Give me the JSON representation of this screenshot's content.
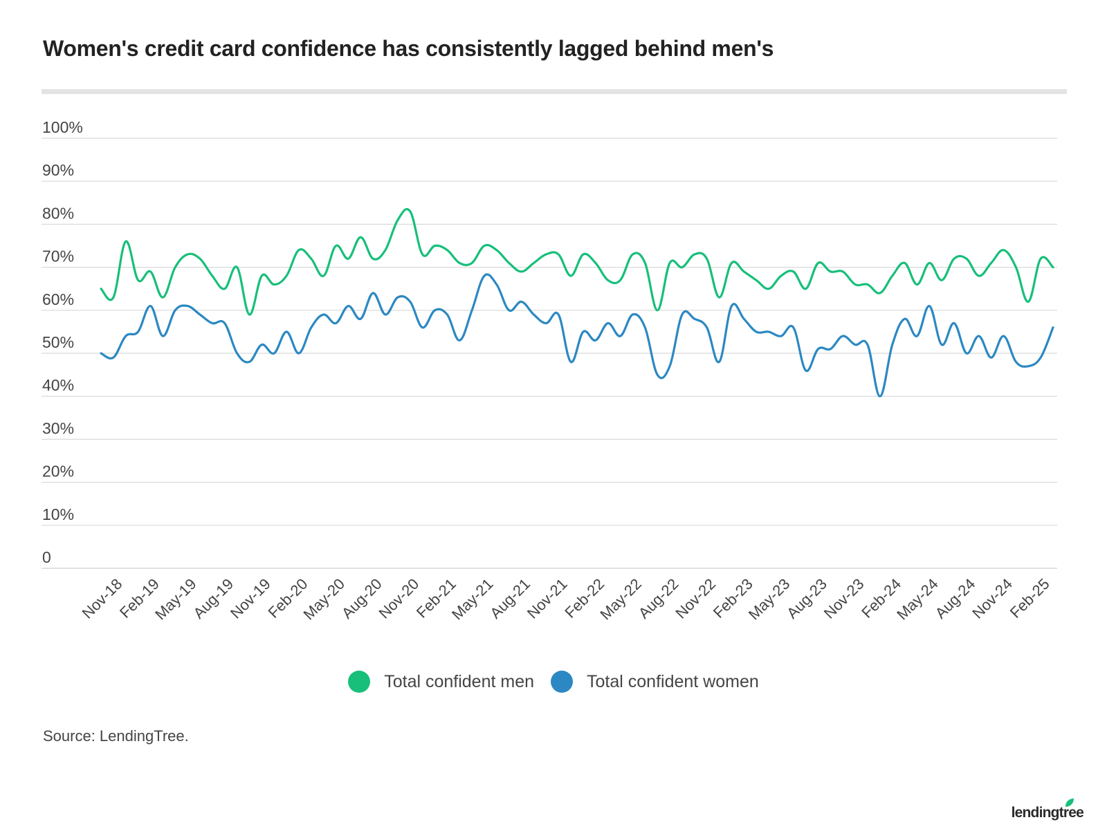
{
  "title": "Women's credit card confidence has consistently lagged behind men's",
  "source": "Source: LendingTree.",
  "logo": "lendingtree",
  "colors": {
    "men": "#17bf7a",
    "women": "#2b88c2",
    "grid": "#d9d9d9",
    "rule": "#e3e3e3"
  },
  "chart_data": {
    "type": "line",
    "x_tick_labels": [
      "Nov-18",
      "Feb-19",
      "May-19",
      "Aug-19",
      "Nov-19",
      "Feb-20",
      "May-20",
      "Aug-20",
      "Nov-20",
      "Feb-21",
      "May-21",
      "Aug-21",
      "Nov-21",
      "Feb-22",
      "May-22",
      "Aug-22",
      "Nov-22",
      "Feb-23",
      "May-23",
      "Aug-23",
      "Nov-23",
      "Feb-24",
      "May-24",
      "Aug-24",
      "Nov-24",
      "Feb-25"
    ],
    "y_tick_labels": [
      "0",
      "10%",
      "20%",
      "30%",
      "40%",
      "50%",
      "60%",
      "70%",
      "80%",
      "90%",
      "100%"
    ],
    "ylim": [
      0,
      100
    ],
    "grid": true,
    "legend_position": "bottom",
    "x_start": "Oct-18",
    "x_end": "Mar-25",
    "series": [
      {
        "name": "Total confident men",
        "values": [
          65,
          63,
          76,
          67,
          69,
          63,
          70,
          73,
          72,
          68,
          65,
          70,
          59,
          68,
          66,
          68,
          74,
          72,
          68,
          75,
          72,
          77,
          72,
          74,
          81,
          83,
          73,
          75,
          74,
          71,
          71,
          75,
          74,
          71,
          69,
          71,
          73,
          73,
          68,
          73,
          71,
          67,
          67,
          73,
          71,
          60,
          71,
          70,
          73,
          72,
          63,
          71,
          69,
          67,
          65,
          68,
          69,
          65,
          71,
          69,
          69,
          66,
          66,
          64,
          68,
          71,
          66,
          71,
          67,
          72,
          72,
          68,
          71,
          74,
          70,
          62,
          72,
          70
        ]
      },
      {
        "name": "Total confident women",
        "values": [
          50,
          49,
          54,
          55,
          61,
          54,
          60,
          61,
          59,
          57,
          57,
          50,
          48,
          52,
          50,
          55,
          50,
          56,
          59,
          57,
          61,
          58,
          64,
          59,
          63,
          62,
          56,
          60,
          59,
          53,
          60,
          68,
          66,
          60,
          62,
          59,
          57,
          59,
          48,
          55,
          53,
          57,
          54,
          59,
          56,
          45,
          47,
          59,
          58,
          56,
          48,
          61,
          58,
          55,
          55,
          54,
          56,
          46,
          51,
          51,
          54,
          52,
          52,
          40,
          52,
          58,
          54,
          61,
          52,
          57,
          50,
          54,
          49,
          54,
          48,
          47,
          49,
          56
        ]
      }
    ]
  }
}
